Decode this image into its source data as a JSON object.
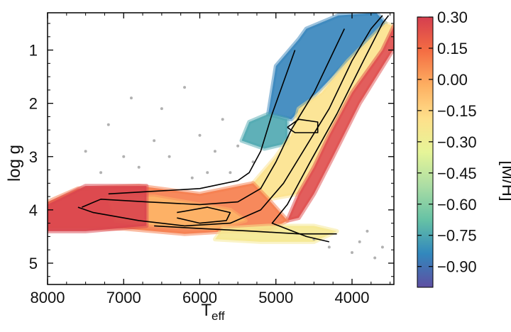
{
  "chart_data": {
    "type": "heatmap",
    "title": "",
    "xlabel": "T",
    "xlabel_sub": "eff",
    "ylabel": "log g",
    "colorbar_label": "[M/H]",
    "x_reversed": true,
    "y_reversed": true,
    "xlim": [
      8000,
      3450
    ],
    "ylim": [
      0.3,
      5.4
    ],
    "x_ticks": [
      8000,
      7000,
      6000,
      5000,
      4000
    ],
    "x_tick_labels": [
      "8000",
      "7000",
      "6000",
      "5000",
      "4000"
    ],
    "y_ticks": [
      1,
      2,
      3,
      4,
      5
    ],
    "y_tick_labels": [
      "1",
      "2",
      "3",
      "4",
      "5"
    ],
    "colorbar_range": [
      -1.0,
      0.3
    ],
    "colorbar_ticks": [
      0.3,
      0.15,
      0.0,
      -0.15,
      -0.3,
      -0.45,
      -0.6,
      -0.75,
      -0.9
    ],
    "colorbar_tick_labels": [
      "0.30",
      "0.15",
      "0.00",
      "−0.15",
      "−0.30",
      "−0.45",
      "−0.60",
      "−0.75",
      "−0.90"
    ],
    "colormap": [
      "#5e4fa2",
      "#3288bd",
      "#66c2a5",
      "#abdda4",
      "#e6f598",
      "#fee08b",
      "#fdae61",
      "#f46d43",
      "#d53e4f"
    ],
    "outlier_color": "#9e9e9e",
    "contour_color": "#000000",
    "regions": [
      {
        "name": "giant-branch-metal-poor",
        "points": [
          [
            4180,
            0.35
          ],
          [
            3680,
            0.3
          ],
          [
            3560,
            0.5
          ],
          [
            4050,
            1.2
          ],
          [
            4600,
            2.0
          ],
          [
            4800,
            2.3
          ],
          [
            5100,
            2.2
          ],
          [
            5000,
            1.3
          ],
          [
            4700,
            0.8
          ],
          [
            4600,
            0.6
          ]
        ],
        "mh": -0.85
      },
      {
        "name": "red-clump-metal-poor",
        "points": [
          [
            5350,
            2.35
          ],
          [
            5100,
            2.2
          ],
          [
            4850,
            2.3
          ],
          [
            4850,
            2.75
          ],
          [
            5150,
            2.85
          ],
          [
            5450,
            2.7
          ]
        ],
        "mh": -0.75
      },
      {
        "name": "rgb-body",
        "points": [
          [
            3560,
            0.5
          ],
          [
            3450,
            0.55
          ],
          [
            3600,
            1.0
          ],
          [
            4000,
            1.8
          ],
          [
            4300,
            2.6
          ],
          [
            4500,
            3.2
          ],
          [
            4700,
            3.7
          ],
          [
            5100,
            3.8
          ],
          [
            5300,
            3.5
          ],
          [
            5000,
            3.0
          ],
          [
            4800,
            2.6
          ],
          [
            4700,
            2.1
          ],
          [
            4400,
            1.8
          ],
          [
            4050,
            1.2
          ]
        ],
        "mh": -0.2
      },
      {
        "name": "rgb-metal-rich-edge",
        "points": [
          [
            3450,
            0.55
          ],
          [
            3420,
            0.9
          ],
          [
            3900,
            2.0
          ],
          [
            4250,
            3.0
          ],
          [
            4500,
            3.7
          ],
          [
            4700,
            4.15
          ],
          [
            4850,
            4.2
          ],
          [
            4700,
            3.7
          ],
          [
            4500,
            3.2
          ],
          [
            4300,
            2.6
          ],
          [
            4000,
            1.8
          ],
          [
            3600,
            1.0
          ]
        ],
        "mh": 0.25
      },
      {
        "name": "subgiant-turnoff",
        "points": [
          [
            8000,
            3.85
          ],
          [
            7600,
            3.6
          ],
          [
            6800,
            3.55
          ],
          [
            6000,
            3.7
          ],
          [
            5300,
            3.5
          ],
          [
            5100,
            3.8
          ],
          [
            4850,
            4.2
          ],
          [
            5100,
            4.4
          ],
          [
            5600,
            4.4
          ],
          [
            6200,
            4.45
          ],
          [
            7000,
            4.35
          ],
          [
            8000,
            4.35
          ]
        ],
        "mh": 0.1
      },
      {
        "name": "turnoff-core",
        "points": [
          [
            7200,
            3.75
          ],
          [
            6600,
            3.75
          ],
          [
            6000,
            3.9
          ],
          [
            5600,
            4.0
          ],
          [
            5400,
            4.2
          ],
          [
            5800,
            4.35
          ],
          [
            6500,
            4.3
          ],
          [
            7100,
            4.2
          ]
        ],
        "mh": -0.05
      },
      {
        "name": "dwarf-sequence",
        "points": [
          [
            5700,
            4.35
          ],
          [
            5100,
            4.3
          ],
          [
            4500,
            4.3
          ],
          [
            4200,
            4.4
          ],
          [
            4500,
            4.6
          ],
          [
            5200,
            4.6
          ],
          [
            5800,
            4.55
          ]
        ],
        "mh": -0.25
      },
      {
        "name": "metal-rich-red-hot-end",
        "points": [
          [
            8000,
            3.9
          ],
          [
            7500,
            3.55
          ],
          [
            6700,
            3.55
          ],
          [
            6700,
            4.3
          ],
          [
            7500,
            4.4
          ],
          [
            8000,
            4.4
          ]
        ],
        "mh": 0.28
      }
    ],
    "contours": [
      [
        [
          3520,
          0.35
        ],
        [
          3600,
          0.5
        ],
        [
          3850,
          1.2
        ],
        [
          4200,
          2.2
        ],
        [
          4550,
          3.1
        ],
        [
          4850,
          3.9
        ],
        [
          5050,
          4.25
        ],
        [
          4600,
          4.5
        ],
        [
          4300,
          4.6
        ]
      ],
      [
        [
          3600,
          0.35
        ],
        [
          3750,
          0.6
        ],
        [
          4000,
          1.2
        ],
        [
          4300,
          2.1
        ],
        [
          4600,
          2.8
        ],
        [
          4900,
          3.5
        ],
        [
          5200,
          4.0
        ],
        [
          5600,
          4.25
        ],
        [
          6200,
          4.3
        ],
        [
          6800,
          4.2
        ],
        [
          7400,
          4.05
        ],
        [
          7600,
          3.95
        ]
      ],
      [
        [
          4100,
          0.6
        ],
        [
          4300,
          1.2
        ],
        [
          4500,
          1.8
        ],
        [
          4800,
          2.5
        ],
        [
          5000,
          3.1
        ],
        [
          5200,
          3.6
        ],
        [
          5500,
          3.85
        ],
        [
          6000,
          3.9
        ],
        [
          6700,
          3.85
        ],
        [
          7300,
          3.8
        ],
        [
          7550,
          3.95
        ]
      ],
      [
        [
          4750,
          1.0
        ],
        [
          4900,
          1.6
        ],
        [
          5050,
          2.2
        ],
        [
          5200,
          2.9
        ],
        [
          5350,
          3.3
        ],
        [
          5500,
          3.45
        ],
        [
          6000,
          3.6
        ],
        [
          6600,
          3.65
        ],
        [
          7200,
          3.7
        ]
      ],
      [
        [
          4850,
          2.45
        ],
        [
          4700,
          2.3
        ],
        [
          4450,
          2.35
        ],
        [
          4450,
          2.55
        ],
        [
          4750,
          2.55
        ],
        [
          4850,
          2.45
        ]
      ],
      [
        [
          6300,
          4.05
        ],
        [
          5900,
          3.95
        ],
        [
          5600,
          4.05
        ],
        [
          5650,
          4.2
        ],
        [
          6000,
          4.25
        ],
        [
          6300,
          4.15
        ]
      ],
      [
        [
          4200,
          4.45
        ],
        [
          4700,
          4.45
        ],
        [
          5300,
          4.4
        ],
        [
          6000,
          4.35
        ],
        [
          6600,
          4.3
        ]
      ]
    ],
    "outliers": [
      [
        6900,
        1.9
      ],
      [
        6500,
        2.1
      ],
      [
        7200,
        2.4
      ],
      [
        6000,
        2.6
      ],
      [
        5700,
        2.3
      ],
      [
        6400,
        3.0
      ],
      [
        6800,
        3.2
      ],
      [
        5900,
        3.3
      ],
      [
        5300,
        3.1
      ],
      [
        7500,
        2.9
      ],
      [
        6200,
        1.7
      ],
      [
        5500,
        2.8
      ],
      [
        6600,
        2.7
      ],
      [
        7000,
        3.0
      ],
      [
        5800,
        2.9
      ],
      [
        4300,
        4.7
      ],
      [
        4000,
        4.8
      ],
      [
        3900,
        4.6
      ],
      [
        3700,
        4.9
      ],
      [
        4500,
        4.55
      ],
      [
        3800,
        4.4
      ],
      [
        3600,
        4.7
      ],
      [
        6100,
        3.4
      ],
      [
        5600,
        3.3
      ],
      [
        7300,
        3.3
      ]
    ]
  }
}
